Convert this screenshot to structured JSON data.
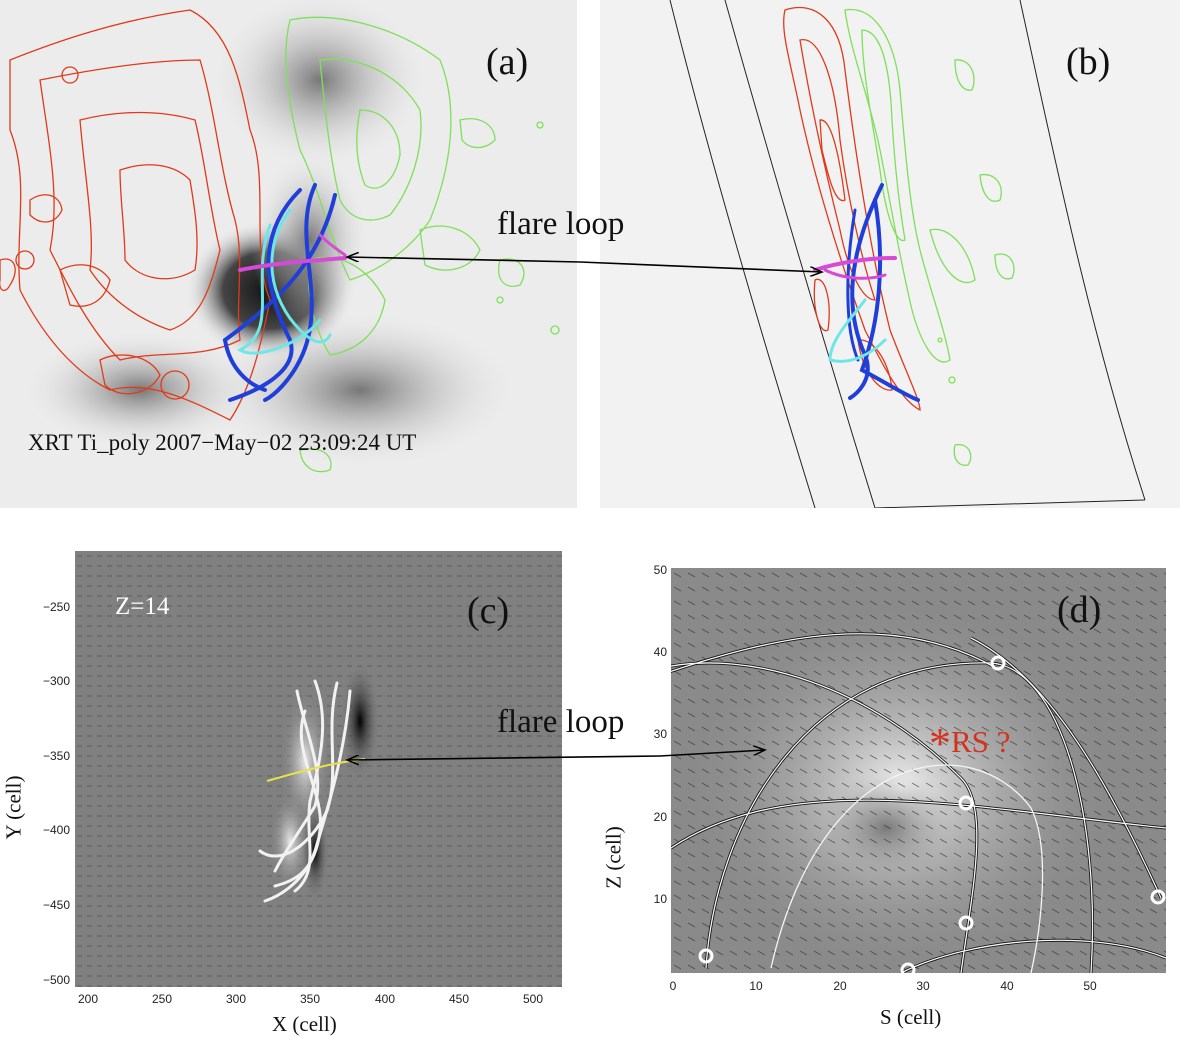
{
  "panels": {
    "a": {
      "letter": "(a)",
      "caption": "XRT Ti_poly  2007−May−02 23:09:24 UT",
      "annotation": "flare loop"
    },
    "b": {
      "letter": "(b)"
    },
    "c": {
      "letter": "(c)",
      "zlabel": "Z=14",
      "annotation": "flare  loop",
      "xlabel": "X (cell)",
      "ylabel": "Y (cell)",
      "xticks": [
        "200",
        "250",
        "300",
        "350",
        "400",
        "450",
        "500"
      ],
      "yticks": [
        "−250",
        "−300",
        "−350",
        "−400",
        "−450",
        "−500"
      ]
    },
    "d": {
      "letter": "(d)",
      "xlabel": "S (cell)",
      "ylabel": "Z (cell)",
      "rs_label": "RS ?",
      "rs_marker": "*",
      "xticks": [
        "0",
        "10",
        "20",
        "30",
        "40",
        "50"
      ],
      "yticks": [
        "50",
        "40",
        "30",
        "20",
        "10"
      ]
    }
  },
  "colors": {
    "positive_contour": "#e03a1a",
    "negative_contour": "#7ee05a",
    "loop_blue": "#1f3fd8",
    "loop_cyan": "#6fe6e6",
    "loop_magenta": "#d64ad6",
    "rs_marker": "#d4321e"
  }
}
